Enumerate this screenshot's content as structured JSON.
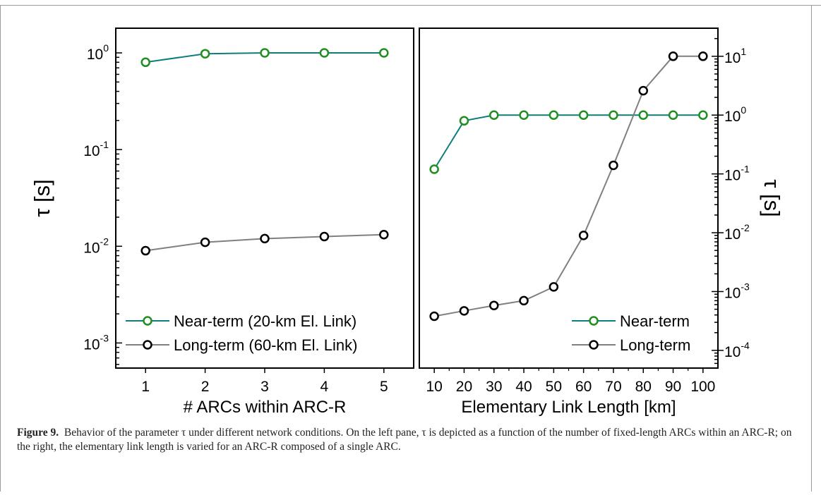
{
  "caption": {
    "label": "Figure 9.",
    "text": "Behavior of the parameter τ under different network conditions. On the left pane, τ is depicted as a function of the number of fixed-length ARCs within an ARC-R; on the right, the elementary link length is varied for an ARC-R composed of a single ARC."
  },
  "colors": {
    "near_term": "#0e7d7d",
    "near_marker": "#1f8f1f",
    "long_term": "#808080",
    "long_marker": "#000000"
  },
  "chart_data": [
    {
      "type": "line",
      "x_axis_scale": "linear",
      "y_axis_scale": "log",
      "xlabel": "# ARCs within ARC-R",
      "ylabel": "τ [s]",
      "x": [
        1,
        2,
        3,
        4,
        5
      ],
      "xlim": [
        0.5,
        5.5
      ],
      "ylim": [
        0.00055,
        1.8
      ],
      "ytick_exponents": [
        0,
        -1,
        -2,
        -3
      ],
      "legend_position": "bottom-right",
      "series": [
        {
          "name": "Near-term (20-km El. Link)",
          "values": [
            0.8,
            0.98,
            1.0,
            1.0,
            1.0
          ]
        },
        {
          "name": "Long-term (60-km El. Link)",
          "values": [
            0.009,
            0.011,
            0.012,
            0.0126,
            0.0132
          ]
        }
      ]
    },
    {
      "type": "line",
      "x_axis_scale": "linear",
      "y_axis_scale": "log",
      "xlabel": "Elementary Link Length [km]",
      "ylabel": "τ [s]",
      "x": [
        10,
        20,
        30,
        40,
        50,
        60,
        70,
        80,
        90,
        100
      ],
      "xlim": [
        5,
        105
      ],
      "ylim": [
        5e-05,
        30
      ],
      "ytick_exponents": [
        1,
        0,
        -1,
        -2,
        -3,
        -4
      ],
      "legend_position": "bottom-right",
      "series": [
        {
          "name": "Near-term",
          "values": [
            0.12,
            0.8,
            1.0,
            1.0,
            1.0,
            1.0,
            1.0,
            1.0,
            1.0,
            1.0
          ]
        },
        {
          "name": "Long-term",
          "values": [
            0.00038,
            0.00047,
            0.00058,
            0.0007,
            0.0012,
            0.009,
            0.14,
            2.6,
            10,
            10
          ]
        }
      ]
    }
  ]
}
